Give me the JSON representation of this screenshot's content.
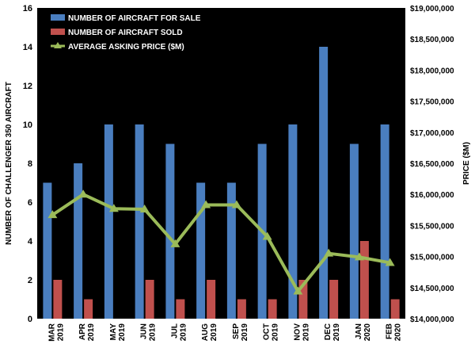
{
  "chart_data": {
    "type": "bar",
    "categories": [
      [
        "MAR",
        "2019"
      ],
      [
        "APR",
        "2019"
      ],
      [
        "MAY",
        "2019"
      ],
      [
        "JUN",
        "2019"
      ],
      [
        "JUL",
        "2019"
      ],
      [
        "AUG",
        "2019"
      ],
      [
        "SEP",
        "2019"
      ],
      [
        "OCT",
        "2019"
      ],
      [
        "NOV",
        "2019"
      ],
      [
        "DEC",
        "2019"
      ],
      [
        "JAN",
        "2020"
      ],
      [
        "FEB",
        "2020"
      ]
    ],
    "series": [
      {
        "name": "NUMBER OF AIRCRAFT FOR SALE",
        "kind": "bar",
        "axis": "left",
        "color": "#4a7ebf",
        "values": [
          7,
          8,
          10,
          10,
          9,
          7,
          7,
          9,
          10,
          14,
          9,
          10
        ]
      },
      {
        "name": "NUMBER OF AIRCRAFT SOLD",
        "kind": "bar",
        "axis": "left",
        "color": "#c0504d",
        "values": [
          2,
          1,
          0,
          2,
          1,
          2,
          1,
          1,
          2,
          2,
          4,
          1
        ]
      },
      {
        "name": "AVERAGE ASKING PRICE ($M)",
        "kind": "line",
        "axis": "right",
        "color": "#9bbb59",
        "values": [
          15670000,
          16000000,
          15770000,
          15760000,
          15200000,
          15830000,
          15830000,
          15320000,
          14440000,
          15050000,
          14990000,
          14900000
        ]
      }
    ],
    "ylabel": "NUMBER OF CHALLENGER 350 AIRCRAFT",
    "y2label": "PRICE ($M)",
    "ylim": [
      0,
      16
    ],
    "yticks": [
      0,
      2,
      4,
      6,
      8,
      10,
      12,
      14,
      16
    ],
    "y2lim": [
      14000000,
      19000000
    ],
    "y2ticks": [
      "$14,000,000",
      "$14,500,000",
      "$15,000,000",
      "$15,500,000",
      "$16,000,000",
      "$16,500,000",
      "$17,000,000",
      "$17,500,000",
      "$18,000,000",
      "$18,500,000",
      "$19,000,000"
    ],
    "legend_position": "top-left",
    "grid": false,
    "colors": {
      "plot_background": "#000000",
      "page_background": "#ffffff"
    }
  }
}
